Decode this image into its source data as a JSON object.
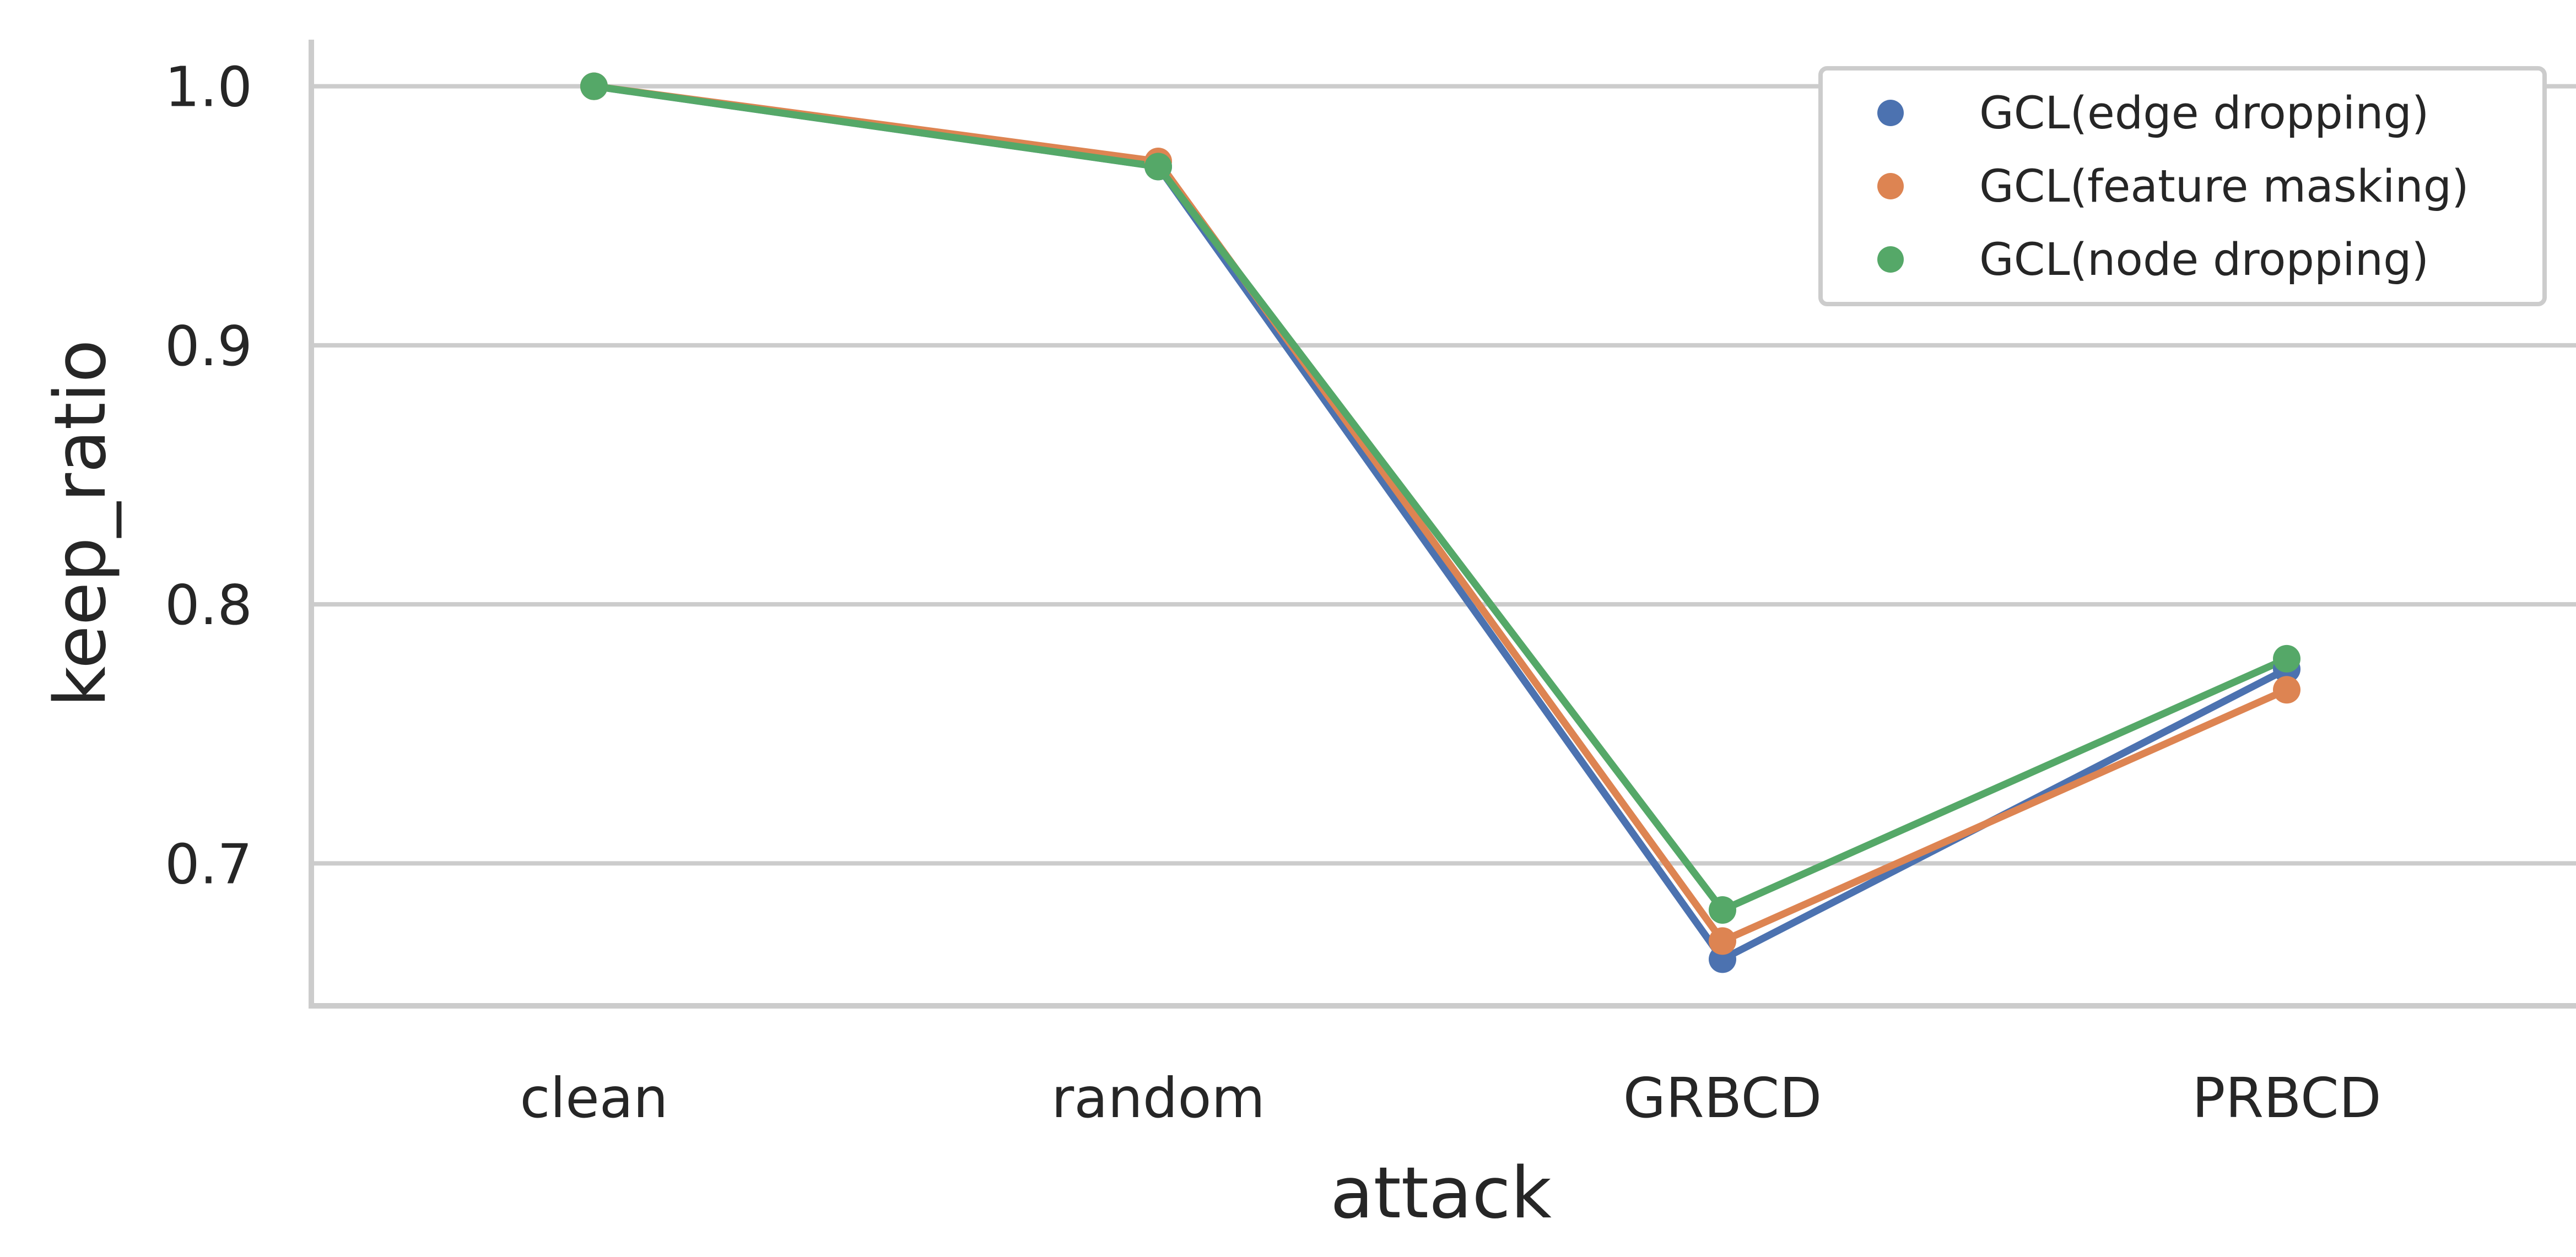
{
  "chart_data": {
    "type": "line",
    "categories": [
      "clean",
      "random",
      "GRBCD",
      "PRBCD"
    ],
    "xlabel": "attack",
    "ylabel": "keep_ratio",
    "ylim": [
      0.645,
      1.018
    ],
    "yticks": [
      0.7,
      0.8,
      0.9,
      1.0
    ],
    "ytick_labels": [
      "0.7",
      "0.8",
      "0.9",
      "1.0"
    ],
    "grid": "horizontal",
    "legend_position": "top-right",
    "series": [
      {
        "name": "GCL(edge dropping)",
        "color": "#4c72b0",
        "values": [
          1.0,
          0.969,
          0.663,
          0.775
        ]
      },
      {
        "name": "GCL(feature masking)",
        "color": "#dd8452",
        "values": [
          1.0,
          0.971,
          0.67,
          0.767
        ]
      },
      {
        "name": "GCL(node dropping)",
        "color": "#55a868",
        "values": [
          1.0,
          0.969,
          0.682,
          0.779
        ]
      }
    ]
  }
}
